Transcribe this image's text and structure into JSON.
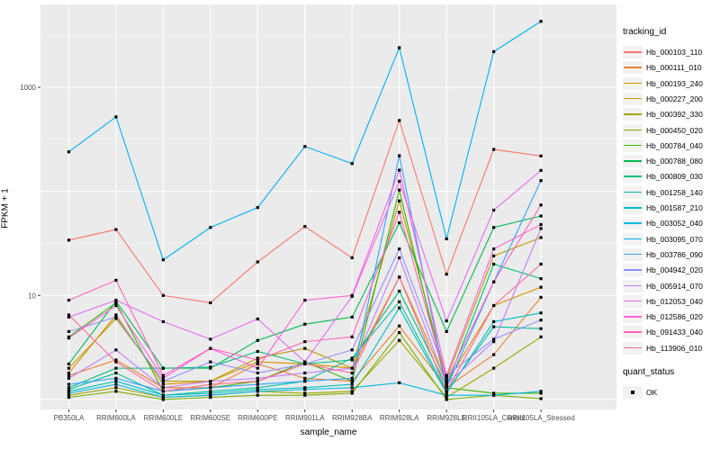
{
  "chart_data": {
    "type": "line",
    "title": "",
    "xlabel": "sample_name",
    "ylabel": "FPKM + 1",
    "y_scale": "log10",
    "ylim": [
      0.85,
      5500
    ],
    "y_major_breaks": [
      1,
      10,
      100,
      1000
    ],
    "y_tick_labels": {
      "10": "10",
      "1000": "1000"
    },
    "grid": true,
    "legend_position": "right",
    "legend_title": "tracking_id",
    "point_legend": {
      "title": "quant_status",
      "label": "OK",
      "marker_color": "#000000"
    },
    "panel_bg": "#ebebeb",
    "categories": [
      "PB350LA",
      "RRIM600LA",
      "RRIM600LE",
      "RRIM600SE",
      "RRIM600PE",
      "RRIM901LA",
      "RRIM928BA",
      "RRIM928LA",
      "RRIM928LE",
      "RRII105LA_Control",
      "RRII105LA_Stressed"
    ],
    "series": [
      {
        "name": "Hb_000103_110",
        "color": "#F8766D",
        "values": [
          34,
          43,
          10,
          8.5,
          21,
          46,
          23,
          480,
          16,
          253,
          219
        ]
      },
      {
        "name": "Hb_000111_010",
        "color": "#EA8331",
        "values": [
          1.7,
          2.4,
          1.3,
          1.3,
          2.2,
          1.6,
          1.5,
          5.1,
          1.3,
          2.7,
          9.6
        ]
      },
      {
        "name": "Hb_000193_240",
        "color": "#D89000",
        "values": [
          1.8,
          6.5,
          1.4,
          1.5,
          2.3,
          2.2,
          2.0,
          15,
          1.45,
          8.0,
          12
        ]
      },
      {
        "name": "Hb_000227_200",
        "color": "#C09B00",
        "values": [
          2.0,
          6.0,
          1.5,
          1.5,
          2.5,
          3.1,
          2.0,
          81,
          1.6,
          24,
          36
        ]
      },
      {
        "name": "Hb_000392_330",
        "color": "#A3A500",
        "values": [
          1.1,
          1.3,
          1.05,
          1.1,
          1.2,
          1.15,
          1.2,
          3.7,
          1.05,
          2.0,
          4.0
        ]
      },
      {
        "name": "Hb_000450_020",
        "color": "#7CAE00",
        "values": [
          1.05,
          1.2,
          1.0,
          1.05,
          1.1,
          1.1,
          1.15,
          4.4,
          1.0,
          1.1,
          1.02
        ]
      },
      {
        "name": "Hb_000784_040",
        "color": "#39B600",
        "values": [
          4.0,
          8.5,
          1.2,
          1.3,
          1.5,
          2.3,
          1.5,
          103,
          1.3,
          1.15,
          1.15
        ]
      },
      {
        "name": "Hb_000788_080",
        "color": "#00BB4E",
        "values": [
          2.2,
          8.8,
          2.0,
          2.0,
          3.7,
          5.3,
          6.2,
          50,
          4.5,
          45,
          58
        ]
      },
      {
        "name": "Hb_000809_030",
        "color": "#00BF7D",
        "values": [
          1.3,
          2.0,
          2.0,
          2.05,
          2.9,
          2.2,
          2.4,
          11,
          1.35,
          20,
          14.5
        ]
      },
      {
        "name": "Hb_001258_140",
        "color": "#00C1A3",
        "values": [
          1.25,
          1.8,
          1.1,
          1.2,
          1.3,
          1.5,
          2.5,
          8.7,
          1.2,
          5.0,
          4.8
        ]
      },
      {
        "name": "Hb_001587_210",
        "color": "#00BFC4",
        "values": [
          1.2,
          1.5,
          1.1,
          1.15,
          1.25,
          1.3,
          1.4,
          7.6,
          1.15,
          5.6,
          6.8
        ]
      },
      {
        "name": "Hb_003052_040",
        "color": "#00BAE0",
        "values": [
          1.15,
          1.4,
          1.05,
          1.1,
          1.2,
          1.25,
          1.3,
          1.45,
          1.1,
          1.1,
          1.2
        ]
      },
      {
        "name": "Hb_003095_070",
        "color": "#00B0F6",
        "values": [
          240,
          520,
          22,
          45,
          70,
          270,
          185,
          2400,
          35,
          2200,
          4300
        ]
      },
      {
        "name": "Hb_003786_090",
        "color": "#35A2FF",
        "values": [
          1.4,
          1.6,
          1.2,
          1.3,
          1.4,
          1.5,
          1.6,
          220,
          1.3,
          13.5,
          127
        ]
      },
      {
        "name": "Hb_004942_020",
        "color": "#9590FF",
        "values": [
          4.5,
          6.2,
          1.5,
          2.3,
          1.8,
          2.2,
          3.0,
          28,
          1.7,
          3.8,
          5.8
        ]
      },
      {
        "name": "Hb_005914_070",
        "color": "#C77CFF",
        "values": [
          1.6,
          3.0,
          1.3,
          1.5,
          1.6,
          1.8,
          2.0,
          23,
          1.4,
          3.6,
          44
        ]
      },
      {
        "name": "Hb_012053_040",
        "color": "#E76BF3",
        "values": [
          6.2,
          9.0,
          5.6,
          3.8,
          5.95,
          2.3,
          9.8,
          125,
          5.7,
          66,
          159
        ]
      },
      {
        "name": "Hb_012586_020",
        "color": "#FA62DB",
        "values": [
          3.9,
          8.0,
          1.6,
          3.1,
          2.0,
          9.0,
          10,
          160,
          1.7,
          28,
          48
        ]
      },
      {
        "name": "Hb_091433_040",
        "color": "#FF62BC",
        "values": [
          9.0,
          14,
          1.7,
          3.1,
          2.4,
          3.6,
          4.0,
          63,
          1.5,
          13.5,
          74
        ]
      },
      {
        "name": "Hb_113906_010",
        "color": "#FF6A98",
        "values": [
          6.5,
          2.3,
          1.2,
          1.4,
          1.5,
          2.2,
          1.8,
          15,
          1.2,
          8.0,
          20
        ]
      }
    ]
  },
  "axes": {
    "y_title": "FPKM + 1",
    "x_title": "sample_name"
  },
  "legend": {
    "tracking_title": "tracking_id",
    "quant_title": "quant_status",
    "quant_ok_label": "OK"
  }
}
